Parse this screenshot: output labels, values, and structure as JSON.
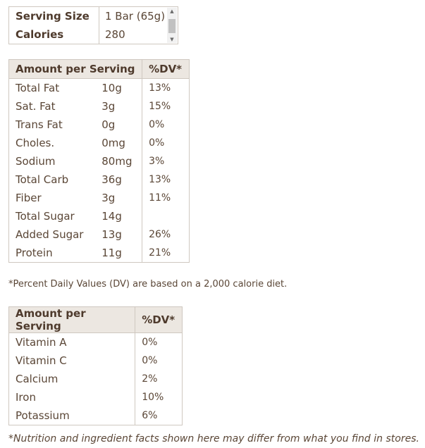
{
  "serving": {
    "size_label": "Serving Size",
    "size_value": "1 Bar (65g)",
    "calories_label": "Calories",
    "calories_value": "280"
  },
  "nutrients": {
    "header_amount": "Amount per Serving",
    "header_dv": "%DV*",
    "rows": [
      {
        "name": "Total Fat",
        "amount": "10g",
        "dv": "13%"
      },
      {
        "name": "Sat. Fat",
        "amount": "3g",
        "dv": "15%"
      },
      {
        "name": "Trans Fat",
        "amount": "0g",
        "dv": "0%"
      },
      {
        "name": "Choles.",
        "amount": "0mg",
        "dv": "0%"
      },
      {
        "name": "Sodium",
        "amount": "80mg",
        "dv": "3%"
      },
      {
        "name": "Total Carb",
        "amount": "36g",
        "dv": "13%"
      },
      {
        "name": "Fiber",
        "amount": "3g",
        "dv": "11%"
      },
      {
        "name": "Total Sugar",
        "amount": "14g",
        "dv": ""
      },
      {
        "name": "Added Sugar",
        "amount": "13g",
        "dv": "26%"
      },
      {
        "name": "Protein",
        "amount": "11g",
        "dv": "21%"
      }
    ]
  },
  "dv_note": "*Percent Daily Values (DV) are based on a 2,000 calorie diet.",
  "vitamins": {
    "header_amount": "Amount per Serving",
    "header_dv": "%DV*",
    "rows": [
      {
        "name": "Vitamin A",
        "dv": "0%"
      },
      {
        "name": "Vitamin C",
        "dv": "0%"
      },
      {
        "name": "Calcium",
        "dv": "2%"
      },
      {
        "name": "Iron",
        "dv": "10%"
      },
      {
        "name": "Potassium",
        "dv": "6%"
      }
    ]
  },
  "disclaimer": "*Nutrition and ingredient facts shown here may differ from what you find in stores. ",
  "colors": {
    "text": "#5a4636",
    "header_bg": "#ece7e1",
    "border": "#cfc8c0"
  }
}
